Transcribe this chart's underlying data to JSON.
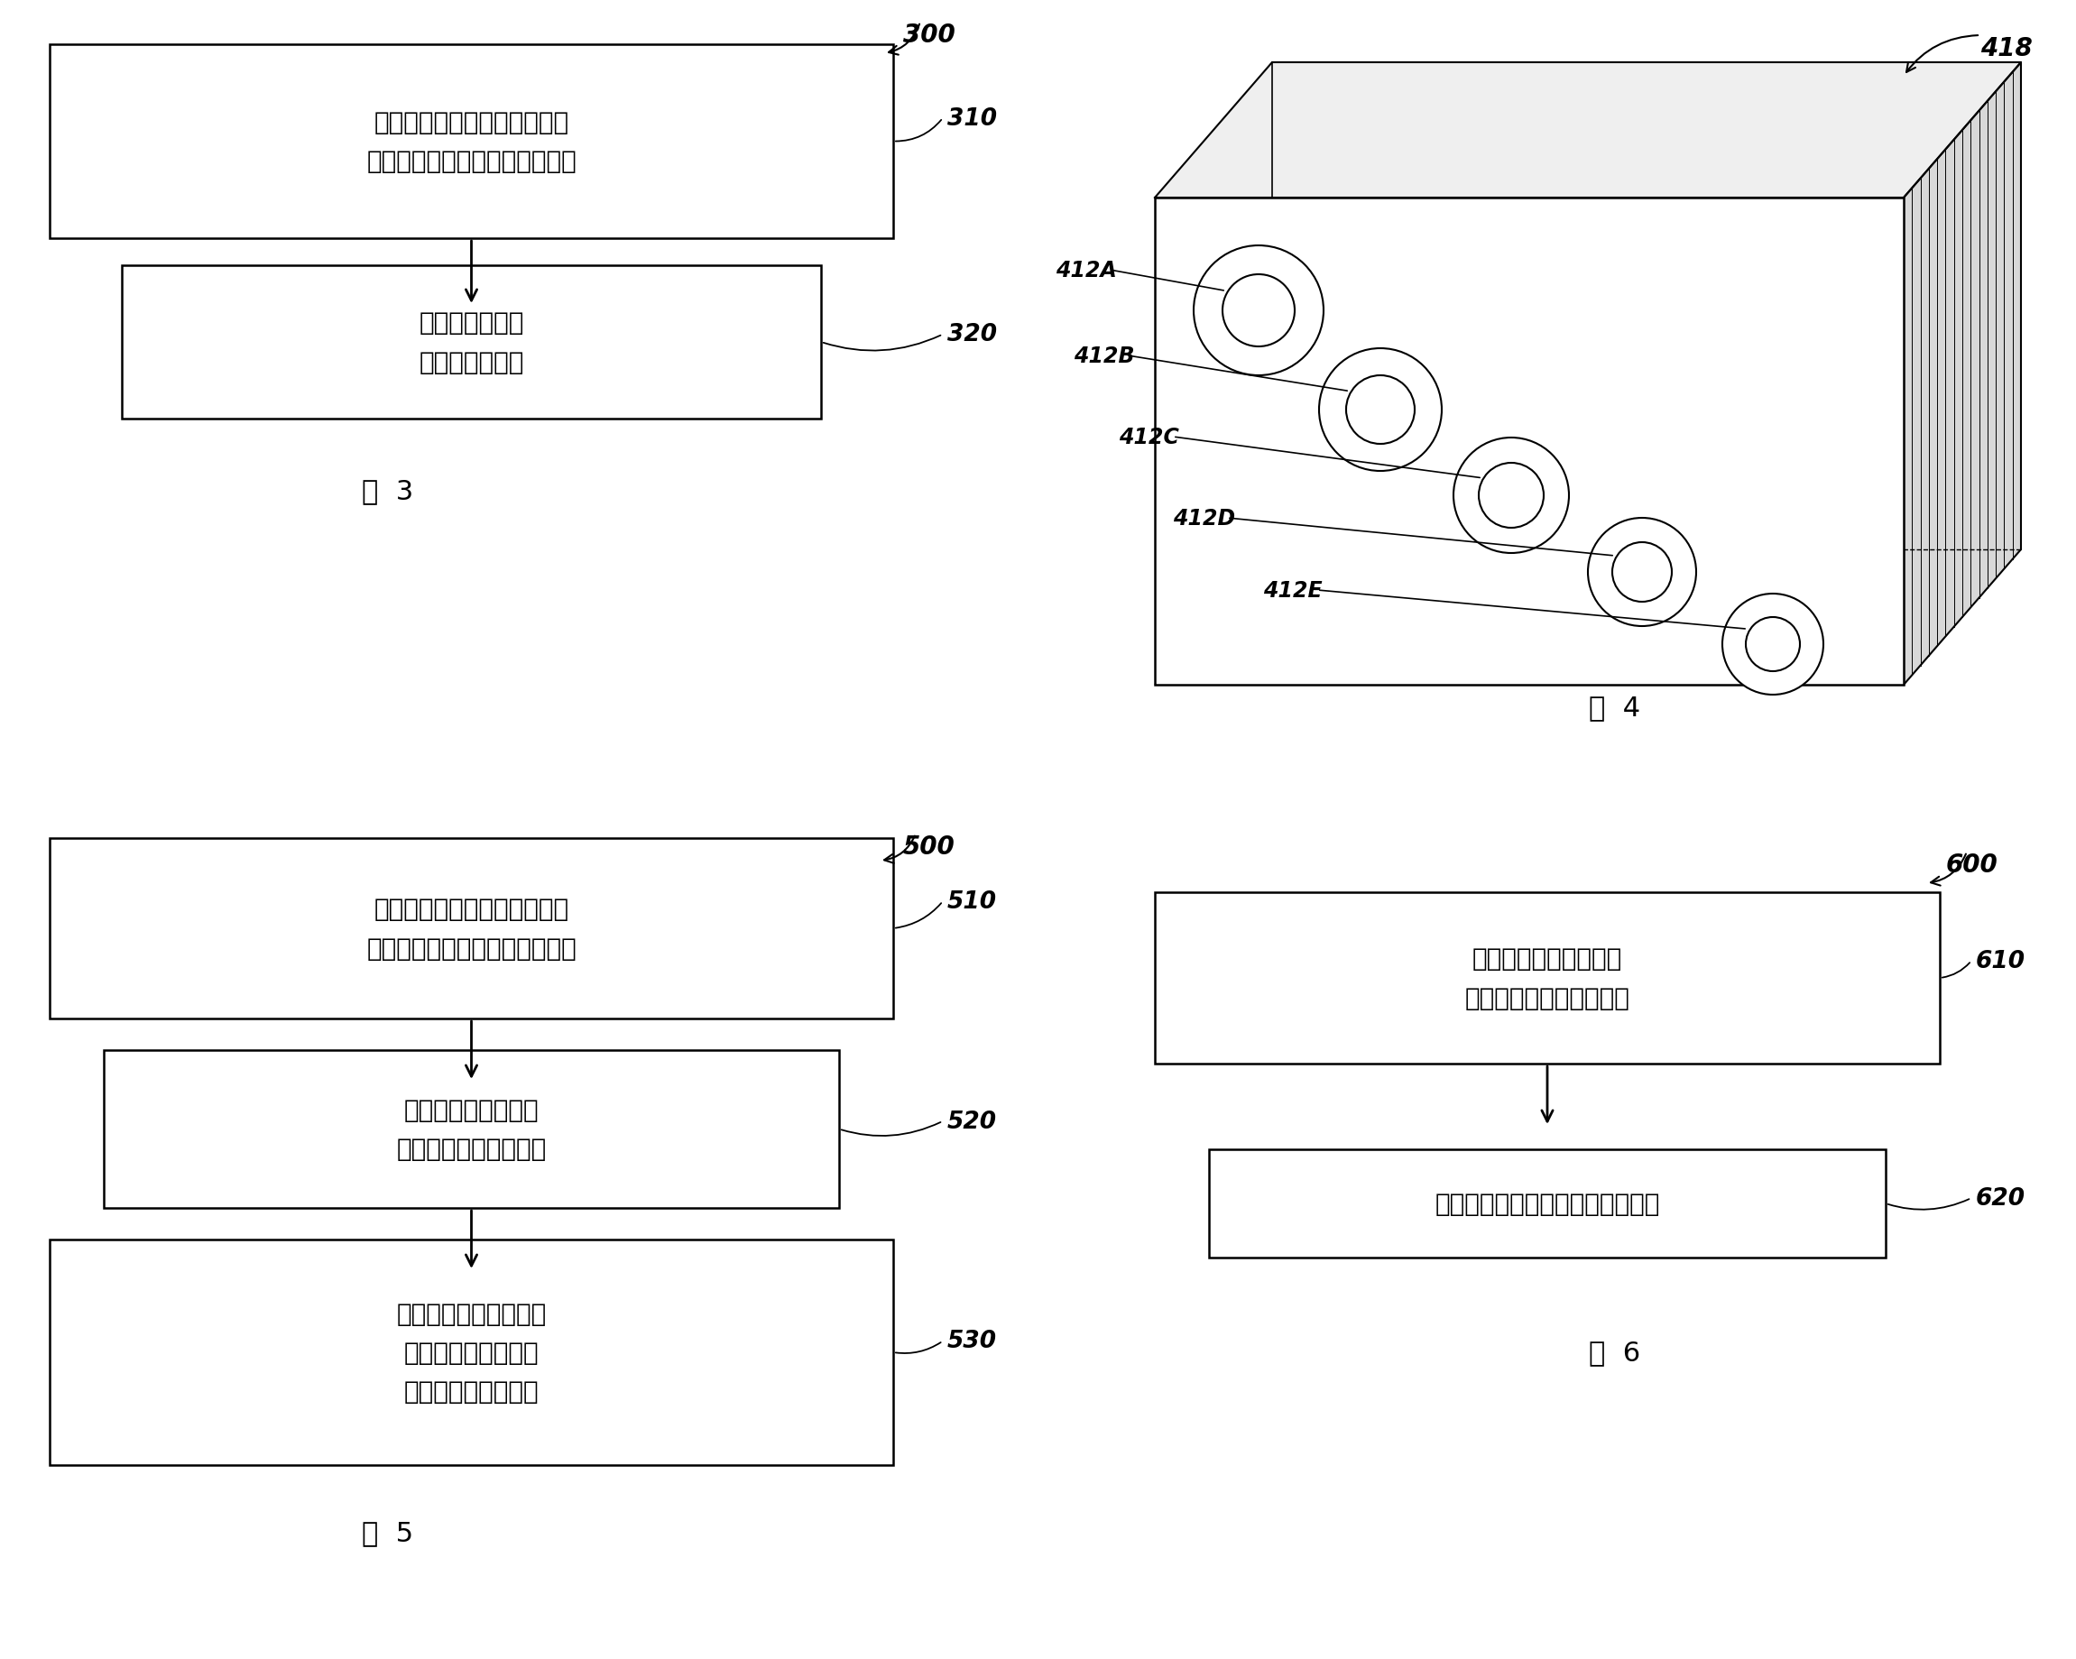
{
  "bg_color": "#ffffff",
  "fig3": {
    "label": "图  3",
    "box1_text": "对多缸体往复泵的中心缸体和\n其余缸体分开地进行预应力处理",
    "box1_ref": "310",
    "box2_text": "同时对其余缸体\n进行预应力处理",
    "box2_ref": "320",
    "top_ref": "300"
  },
  "fig4": {
    "label": "图  4",
    "ref_label": "418",
    "hole_labels": [
      "412A",
      "412B",
      "412C",
      "412D",
      "412E"
    ]
  },
  "fig5": {
    "label": "图  5",
    "top_ref": "500",
    "box1_text": "对多缸体往复泵的中心缸体和\n其余缸体分开地进行预应力处理",
    "box1_ref": "510",
    "box2_text": "同时对紧邻中心缸体\n的缸体进行预应力处理",
    "box2_ref": "520",
    "box3_text": "同时对紧邻先前进行了\n预应力处理的缸体的\n缸体进行预应力处理",
    "box3_ref": "530"
  },
  "fig6": {
    "label": "图  6",
    "top_ref": "600",
    "box1_text": "同时对多缸体往复泵的\n所有缸体进行预应力处理",
    "box1_ref": "610",
    "box2_text": "分开地对中心缸体进行预应力处理",
    "box2_ref": "620"
  }
}
